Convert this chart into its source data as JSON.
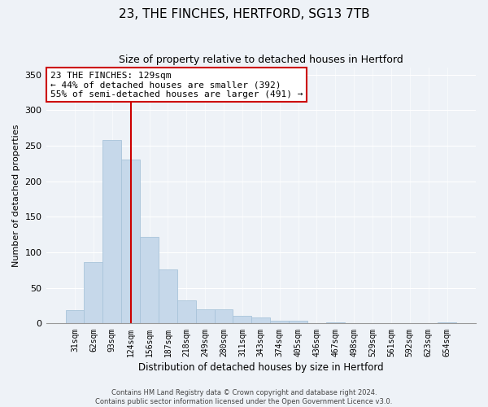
{
  "title": "23, THE FINCHES, HERTFORD, SG13 7TB",
  "subtitle": "Size of property relative to detached houses in Hertford",
  "xlabel": "Distribution of detached houses by size in Hertford",
  "ylabel": "Number of detached properties",
  "bar_labels": [
    "31sqm",
    "62sqm",
    "93sqm",
    "124sqm",
    "156sqm",
    "187sqm",
    "218sqm",
    "249sqm",
    "280sqm",
    "311sqm",
    "343sqm",
    "374sqm",
    "405sqm",
    "436sqm",
    "467sqm",
    "498sqm",
    "529sqm",
    "561sqm",
    "592sqm",
    "623sqm",
    "654sqm"
  ],
  "bar_values": [
    19,
    86,
    258,
    231,
    122,
    76,
    33,
    20,
    20,
    11,
    9,
    4,
    4,
    0,
    2,
    0,
    0,
    0,
    0,
    0,
    2
  ],
  "bar_color": "#c6d8ea",
  "bar_edge_color": "#a8c4da",
  "vline_x_idx": 3,
  "vline_color": "#cc0000",
  "ylim": [
    0,
    360
  ],
  "yticks": [
    0,
    50,
    100,
    150,
    200,
    250,
    300,
    350
  ],
  "annotation_title": "23 THE FINCHES: 129sqm",
  "annotation_line1": "← 44% of detached houses are smaller (392)",
  "annotation_line2": "55% of semi-detached houses are larger (491) →",
  "annotation_box_color": "#ffffff",
  "annotation_box_edge": "#cc0000",
  "footer_line1": "Contains HM Land Registry data © Crown copyright and database right 2024.",
  "footer_line2": "Contains public sector information licensed under the Open Government Licence v3.0.",
  "background_color": "#eef2f7",
  "grid_color": "#ffffff",
  "title_fontsize": 11,
  "subtitle_fontsize": 9,
  "axis_label_fontsize": 8,
  "tick_fontsize": 7,
  "annotation_fontsize": 8,
  "footer_fontsize": 6
}
